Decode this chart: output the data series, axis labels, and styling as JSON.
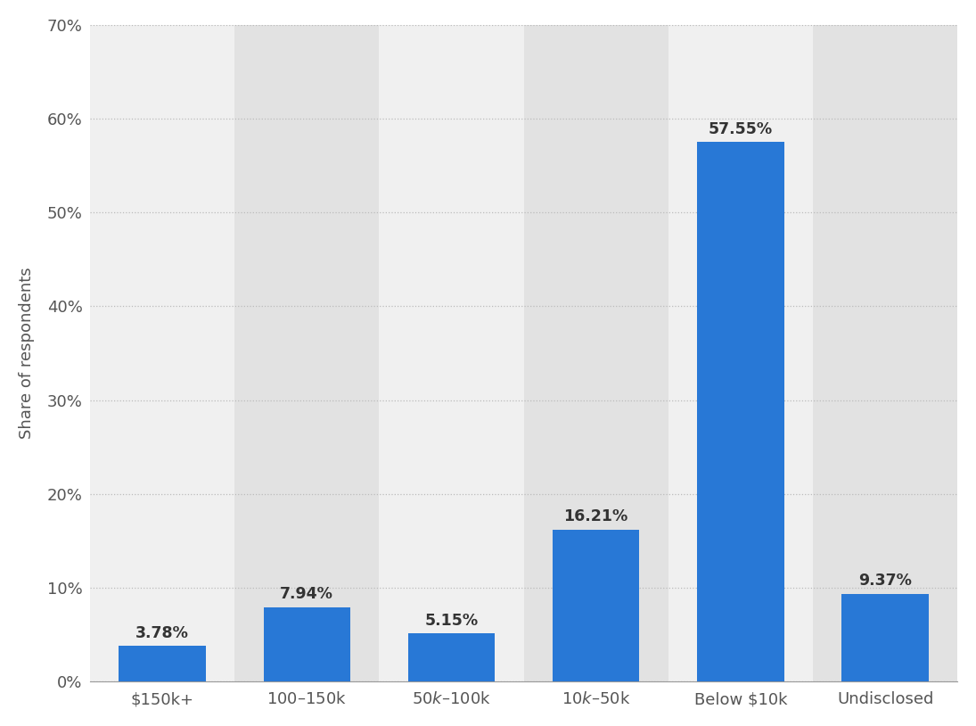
{
  "categories": [
    "$150k+",
    "$100–$150k",
    "$50k–$100k",
    "$10k–$50k",
    "Below $10k",
    "Undisclosed"
  ],
  "values": [
    3.78,
    7.94,
    5.15,
    16.21,
    57.55,
    9.37
  ],
  "labels": [
    "3.78%",
    "7.94%",
    "5.15%",
    "16.21%",
    "57.55%",
    "9.37%"
  ],
  "bar_color": "#2878d6",
  "background_color": "#ffffff",
  "plot_bg_color": "#f0f0f0",
  "col_bg_light": "#f0f0f0",
  "col_bg_dark": "#e2e2e2",
  "ylabel": "Share of respondents",
  "ylim": [
    0,
    70
  ],
  "yticks": [
    0,
    10,
    20,
    30,
    40,
    50,
    60,
    70
  ],
  "ytick_labels": [
    "0%",
    "10%",
    "20%",
    "30%",
    "40%",
    "50%",
    "60%",
    "70%"
  ],
  "bar_width": 0.6,
  "label_fontsize": 12.5,
  "tick_fontsize": 13,
  "ylabel_fontsize": 13,
  "alternating": [
    0,
    1,
    0,
    1,
    0,
    1
  ]
}
